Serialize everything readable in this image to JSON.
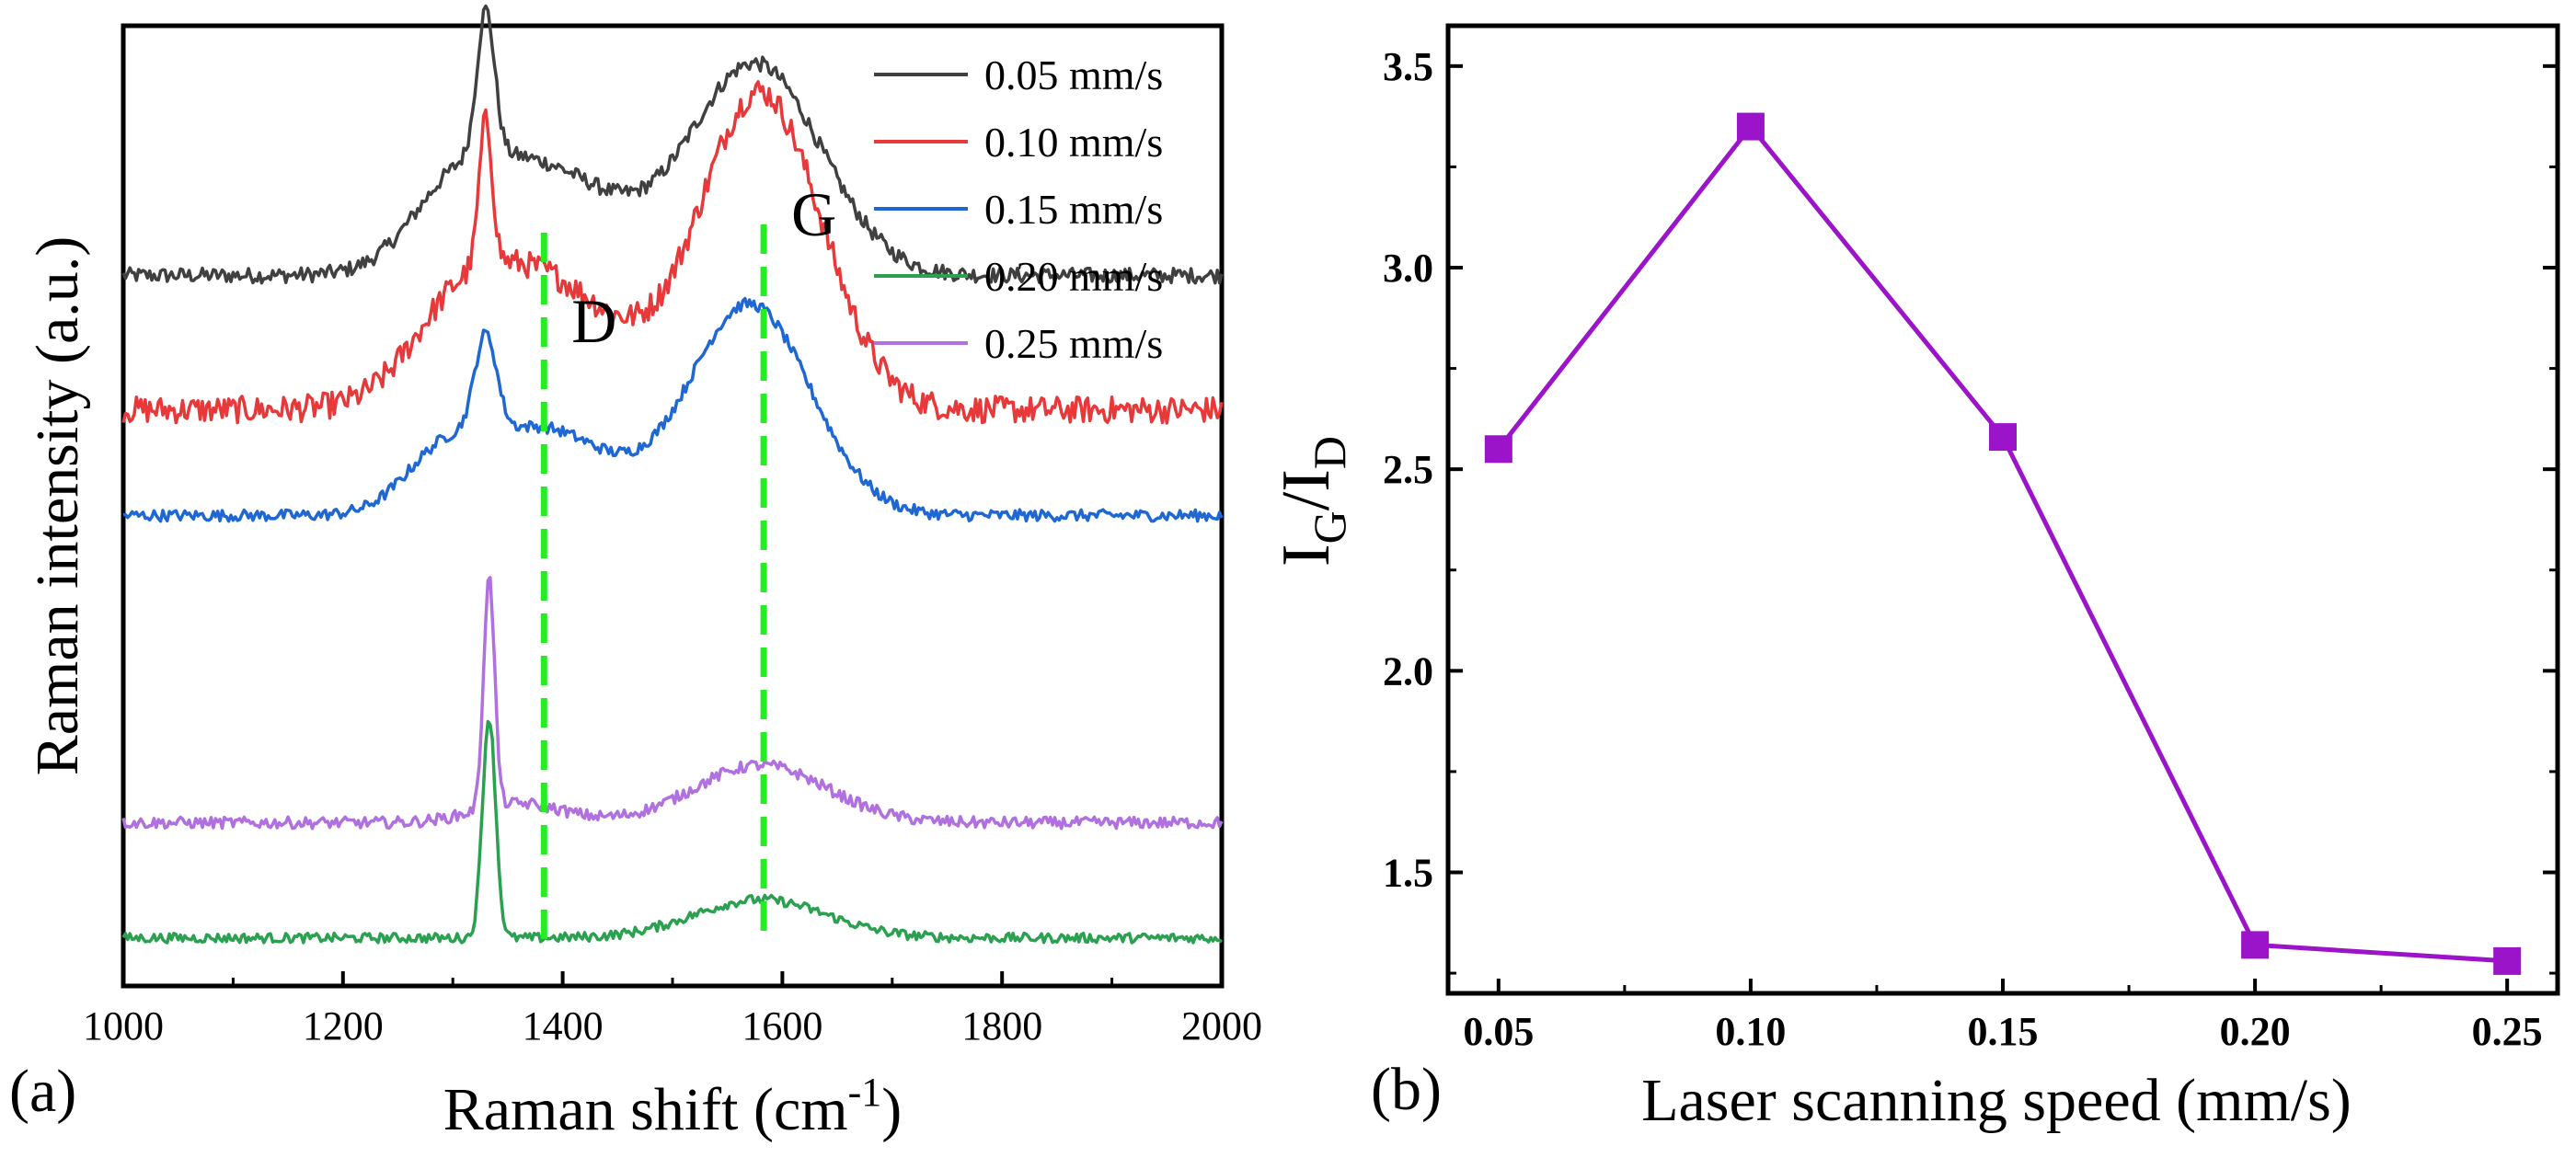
{
  "chart_data": [
    {
      "type": "line",
      "panel_label": "(a)",
      "xlabel": "Raman shift (cm",
      "xlabel_sup": "-1",
      "xlabel_end": ")",
      "ylabel": "Raman intensity (a.u.)",
      "xlim": [
        1000,
        2000
      ],
      "xticks": [
        "1000",
        "1200",
        "1400",
        "1600",
        "1800",
        "2000"
      ],
      "y_tick_labels": false,
      "annotations": [
        {
          "text": "D",
          "x": 1383,
          "style": "dashed green vertical line"
        },
        {
          "text": "G",
          "x": 1583,
          "style": "dashed green vertical line"
        }
      ],
      "series": [
        {
          "name": "0.05 mm/s",
          "color": "#404040",
          "baseline": 0.74,
          "peaks": [
            [
              1330,
              0.15,
              8
            ],
            [
              1380,
              0.11,
              65
            ],
            [
              1575,
              0.22,
              60
            ],
            [
              1300,
              0.06,
              40
            ]
          ],
          "noise": 0.008
        },
        {
          "name": "0.10 mm/s",
          "color": "#e8393a",
          "baseline": 0.6,
          "peaks": [
            [
              1330,
              0.15,
              6
            ],
            [
              1375,
              0.14,
              70
            ],
            [
              1580,
              0.33,
              55
            ],
            [
              1300,
              0.05,
              40
            ]
          ],
          "noise": 0.014
        },
        {
          "name": "0.15 mm/s",
          "color": "#1f68d3",
          "baseline": 0.49,
          "peaks": [
            [
              1330,
              0.1,
              10
            ],
            [
              1380,
              0.09,
              60
            ],
            [
              1570,
              0.22,
              55
            ],
            [
              1290,
              0.05,
              35
            ]
          ],
          "noise": 0.006
        },
        {
          "name": "0.20 mm/s",
          "color": "#2aa050",
          "baseline": 0.05,
          "peaks": [
            [
              1333,
              0.23,
              6
            ],
            [
              1580,
              0.04,
              60
            ]
          ],
          "noise": 0.005
        },
        {
          "name": "0.25 mm/s",
          "color": "#b070e0",
          "baseline": 0.17,
          "peaks": [
            [
              1333,
              0.24,
              5
            ],
            [
              1360,
              0.02,
              40
            ],
            [
              1580,
              0.06,
              60
            ]
          ],
          "noise": 0.006
        }
      ]
    },
    {
      "type": "line",
      "panel_label": "(b)",
      "xlabel": "Laser scanning speed (mm/s)",
      "ylabel_main": "I",
      "ylabel_sub1": "G",
      "ylabel_mid": "/I",
      "ylabel_sub2": "D",
      "xlim": [
        0.04,
        0.26
      ],
      "ylim": [
        1.2,
        3.6
      ],
      "xticks": [
        "0.05",
        "0.10",
        "0.15",
        "0.20",
        "0.25"
      ],
      "yticks": [
        "1.5",
        "2.0",
        "2.5",
        "3.0",
        "3.5"
      ],
      "series": [
        {
          "name": "IG/ID",
          "color": "#9b14c9",
          "marker": "square",
          "x": [
            0.05,
            0.1,
            0.15,
            0.2,
            0.25
          ],
          "values": [
            2.55,
            3.35,
            2.58,
            1.32,
            1.28
          ]
        }
      ]
    }
  ]
}
